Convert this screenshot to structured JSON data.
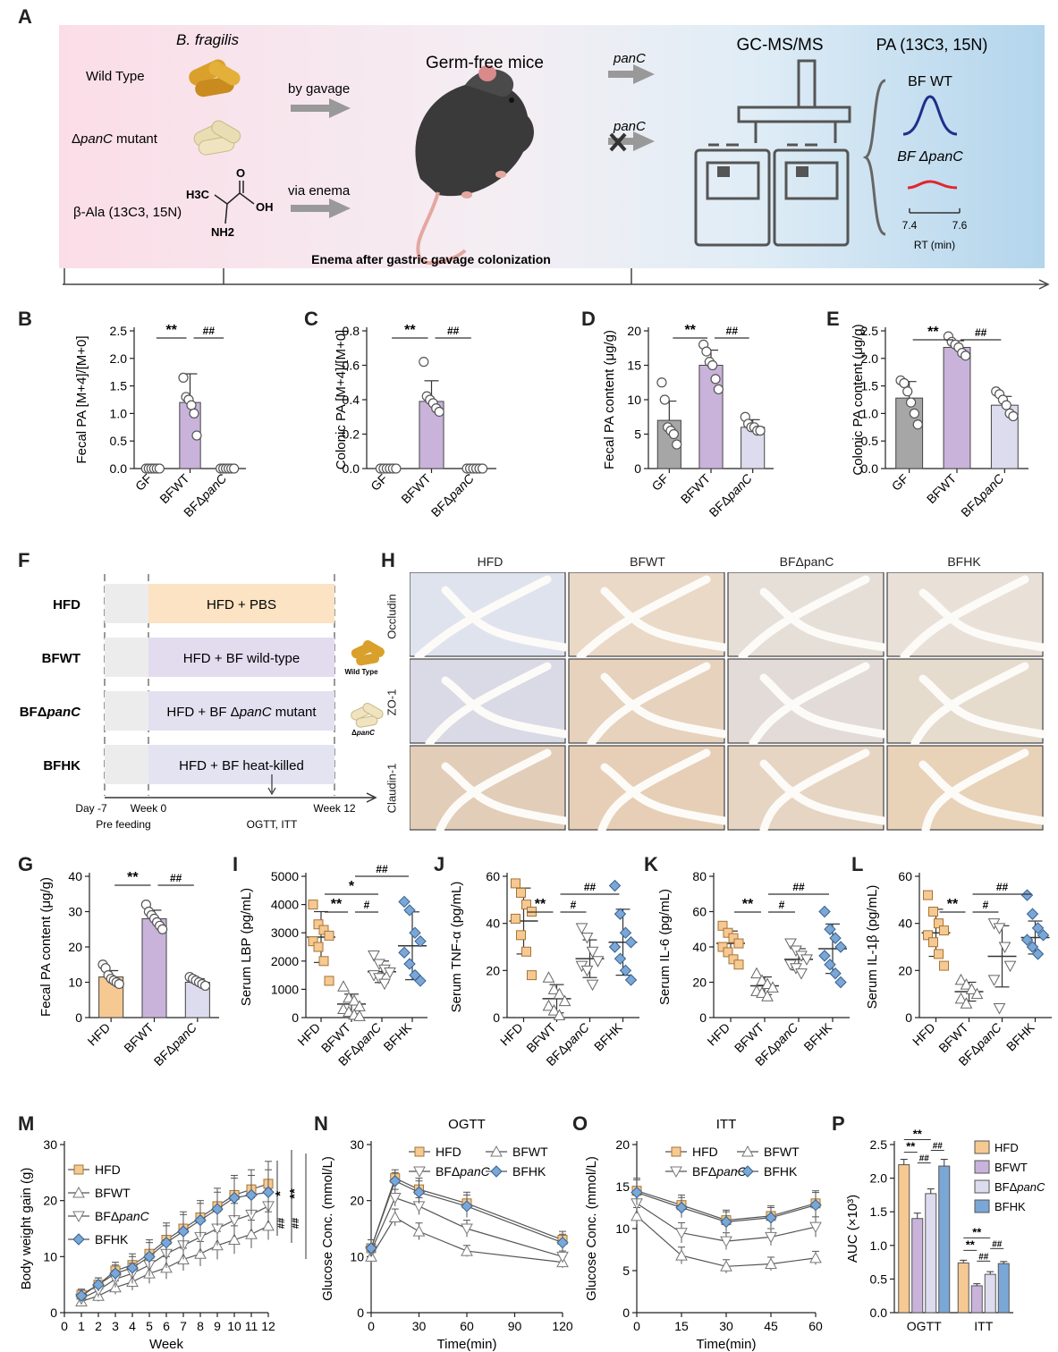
{
  "panel_labels": {
    "A": "A",
    "B": "B",
    "C": "C",
    "D": "D",
    "E": "E",
    "F": "F",
    "G": "G",
    "H": "H",
    "I": "I",
    "J": "J",
    "K": "K",
    "L": "L",
    "M": "M",
    "N": "N",
    "O": "O",
    "P": "P"
  },
  "schematic": {
    "species": "B. fragilis",
    "wild_type": "Wild Type",
    "mutant_prefix": "Δ",
    "mutant_gene": "panC",
    "mutant_suffix": " mutant",
    "bala": "β-Ala (13C3, 15N)",
    "formula_h3c": "H3C",
    "formula_oh": "OH",
    "formula_nh2": "NH2",
    "formula_o": "O",
    "by_gavage": "by gavage",
    "via_enema": "via enema",
    "germ_free": "Germ-free mice",
    "panc_top": "panC",
    "panc_bottom": "panC",
    "gcms": "GC-MS/MS",
    "pa_label": "PA (13C3, 15N)",
    "bf_wt": "BF WT",
    "bf_dpanc": "BF ΔpanC",
    "rt_left": "7.4",
    "rt_right": "7.6",
    "rt_label": "RT (min)",
    "timeline_text": "Enema after gastric gavage colonization",
    "colors": {
      "pink": "#f9dbe6",
      "blue": "#b8d7ee",
      "wt_peak": "#1f2f8a",
      "mut_peak": "#e0262e"
    }
  },
  "groups_BE": [
    "GF",
    "BFWT",
    "BFΔpanC"
  ],
  "groups_G": [
    "HFD",
    "BFWT",
    "BFΔpanC"
  ],
  "groups_4": [
    "HFD",
    "BFWT",
    "BFΔpanC",
    "BFHK"
  ],
  "colors": {
    "gf": "#a6a6a6",
    "hfd": "#f6c993",
    "bfwt": "#c9b3da",
    "bfdpanc": "#dcdcee",
    "bfhk": "#7aa7d6",
    "hfd_line": "#e5a75a",
    "bfwt_line": "#9a9a9a",
    "bfdpanc_line": "#8a8a8a",
    "bfhk_line": "#5b8ec9"
  },
  "panel_F": {
    "rows": [
      {
        "label": "HFD",
        "text": "HFD + PBS",
        "color": "#fbe3c4"
      },
      {
        "label": "BFWT",
        "text": "HFD + BF wild-type",
        "color": "#e3dcef"
      },
      {
        "label": "BFΔpanC",
        "text": "HFD + BF ΔpanC mutant",
        "color": "#e3e1f0"
      },
      {
        "label": "BFHK",
        "text": "HFD + BF heat-killed",
        "color": "#e3e3f2"
      }
    ],
    "wild_type_tag": "Wild Type",
    "dpanc_tag": "ΔpanC",
    "day": "Day -7",
    "week0": "Week 0",
    "week12": "Week 12",
    "pre": "Pre feeding",
    "ogtt_itt": "OGTT, ITT"
  },
  "panel_H": {
    "columns": [
      "HFD",
      "BFWT",
      "BFΔpanC",
      "BFHK"
    ],
    "rows": [
      "Occludin",
      "ZO-1",
      "Claudin-1"
    ]
  },
  "chart_data": [
    {
      "panel": "B",
      "type": "bar",
      "categories": [
        "GF",
        "BFWT",
        "BFΔpanC"
      ],
      "values": [
        0,
        1.2,
        0
      ],
      "error": [
        0,
        0.52,
        0
      ],
      "points": [
        [
          0,
          0,
          0,
          0,
          0,
          0
        ],
        [
          1.65,
          1.3,
          1.25,
          1.15,
          1.0,
          0.6
        ],
        [
          0,
          0,
          0,
          0,
          0,
          0
        ]
      ],
      "ylabel": "Fecal PA [M+4]/[M+0]",
      "ylim": [
        0,
        2.5
      ],
      "yticks": [
        0,
        0.5,
        1.0,
        1.5,
        2.0,
        2.5
      ],
      "sig": [
        {
          "text": "**",
          "from": 0,
          "to": 1
        },
        {
          "text": "##",
          "from": 1,
          "to": 2
        }
      ]
    },
    {
      "panel": "C",
      "type": "bar",
      "categories": [
        "GF",
        "BFWT",
        "BFΔpanC"
      ],
      "values": [
        0,
        0.39,
        0
      ],
      "error": [
        0,
        0.12,
        0
      ],
      "points": [
        [
          0,
          0,
          0,
          0,
          0,
          0
        ],
        [
          0.62,
          0.42,
          0.4,
          0.38,
          0.35,
          0.33
        ],
        [
          0,
          0,
          0,
          0,
          0,
          0
        ]
      ],
      "ylabel": "Colonic PA [M+4]/[M+0]",
      "ylim": [
        0,
        0.8
      ],
      "yticks": [
        0,
        0.2,
        0.4,
        0.6,
        0.8
      ],
      "sig": [
        {
          "text": "**",
          "from": 0,
          "to": 1
        },
        {
          "text": "##",
          "from": 1,
          "to": 2
        }
      ]
    },
    {
      "panel": "D",
      "type": "bar",
      "categories": [
        "GF",
        "BFWT",
        "BFΔpanC"
      ],
      "values": [
        7,
        15,
        6
      ],
      "error": [
        2.8,
        2.2,
        1.1
      ],
      "points": [
        [
          12.5,
          10,
          6,
          5.5,
          5,
          3.5
        ],
        [
          18,
          17,
          15.5,
          15,
          13,
          11.5
        ],
        [
          7.5,
          6.5,
          6,
          6,
          5.5,
          5.5
        ]
      ],
      "ylabel": "Fecal PA content (μg/g)",
      "ylim": [
        0,
        20
      ],
      "yticks": [
        0,
        5,
        10,
        15,
        20
      ],
      "sig": [
        {
          "text": "**",
          "from": 0,
          "to": 1
        },
        {
          "text": "##",
          "from": 1,
          "to": 2
        }
      ]
    },
    {
      "panel": "E",
      "type": "bar",
      "categories": [
        "GF",
        "BFWT",
        "BFΔpanC"
      ],
      "values": [
        1.28,
        2.2,
        1.15
      ],
      "error": [
        0.3,
        0.12,
        0.16
      ],
      "points": [
        [
          1.6,
          1.55,
          1.4,
          1.2,
          1.0,
          0.8
        ],
        [
          2.4,
          2.3,
          2.25,
          2.2,
          2.1,
          2.05
        ],
        [
          1.4,
          1.35,
          1.25,
          1.15,
          1.0,
          0.95
        ]
      ],
      "ylabel": "Colonic PA content (μg/g)",
      "ylim": [
        0,
        2.5
      ],
      "yticks": [
        0,
        0.5,
        1.0,
        1.5,
        2.0,
        2.5
      ],
      "sig": [
        {
          "text": "**",
          "from": 0,
          "to": 1
        },
        {
          "text": "##",
          "from": 1,
          "to": 2
        }
      ]
    },
    {
      "panel": "G",
      "type": "bar",
      "categories": [
        "HFD",
        "BFWT",
        "BFΔpanC"
      ],
      "values": [
        11.5,
        28,
        10
      ],
      "error": [
        1.8,
        2.4,
        1.0
      ],
      "points": [
        [
          15,
          14,
          12,
          11,
          10.5,
          10,
          9.5
        ],
        [
          32,
          30,
          29,
          28,
          27,
          26,
          25
        ],
        [
          11.5,
          11,
          10.5,
          10,
          9.5,
          9
        ]
      ],
      "ylabel": "Fecal PA content (μg/g)",
      "ylim": [
        0,
        40
      ],
      "yticks": [
        0,
        10,
        20,
        30,
        40
      ],
      "sig": [
        {
          "text": "**",
          "from": 0,
          "to": 1
        },
        {
          "text": "##",
          "from": 1,
          "to": 2
        }
      ]
    },
    {
      "panel": "I",
      "type": "scatter",
      "categories": [
        "HFD",
        "BFWT",
        "BFΔpanC",
        "BFHK"
      ],
      "mean": [
        2850,
        480,
        1620,
        2540
      ],
      "sd": [
        900,
        350,
        380,
        1200
      ],
      "points": [
        [
          4000,
          3300,
          3100,
          2900,
          2700,
          2500,
          2000,
          1300
        ],
        [
          1100,
          700,
          600,
          400,
          300,
          200,
          100,
          50
        ],
        [
          2200,
          1900,
          1700,
          1600,
          1500,
          1400,
          1200
        ],
        [
          4100,
          3800,
          3000,
          2700,
          2300,
          1900,
          1500,
          1300
        ]
      ],
      "ylabel": "Serum LBP (pg/mL)",
      "ylim": [
        0,
        5000
      ],
      "yticks": [
        0,
        1000,
        2000,
        3000,
        4000,
        5000
      ],
      "sig": [
        {
          "text": "**",
          "from": 0,
          "to": 1,
          "lvl": 0
        },
        {
          "text": "#",
          "from": 1,
          "to": 2,
          "lvl": 0
        },
        {
          "text": "*",
          "from": 0,
          "to": 2,
          "lvl": 1
        },
        {
          "text": "##",
          "from": 1,
          "to": 3,
          "lvl": 2
        }
      ]
    },
    {
      "panel": "J",
      "type": "scatter",
      "categories": [
        "HFD",
        "BFWT",
        "BFΔpanC",
        "BFHK"
      ],
      "mean": [
        41,
        8,
        25,
        32
      ],
      "sd": [
        14,
        6,
        8,
        14
      ],
      "points": [
        [
          57,
          53,
          48,
          45,
          42,
          35,
          28,
          18
        ],
        [
          17,
          12,
          10,
          7,
          5,
          3,
          1
        ],
        [
          38,
          34,
          28,
          24,
          22,
          20,
          14
        ],
        [
          56,
          44,
          36,
          32,
          30,
          25,
          20,
          16
        ]
      ],
      "ylabel": "Serum TNF-α (pg/mL)",
      "ylim": [
        0,
        60
      ],
      "yticks": [
        0,
        20,
        40,
        60
      ],
      "sig": [
        {
          "text": "**",
          "from": 0,
          "to": 1,
          "lvl": 0
        },
        {
          "text": "#",
          "from": 1,
          "to": 2,
          "lvl": 0
        },
        {
          "text": "##",
          "from": 1,
          "to": 3,
          "lvl": 1
        }
      ]
    },
    {
      "panel": "K",
      "type": "scatter",
      "categories": [
        "HFD",
        "BFWT",
        "BFΔpanC",
        "BFHK"
      ],
      "mean": [
        42,
        18,
        33,
        39
      ],
      "sd": [
        7,
        5,
        6,
        14
      ],
      "points": [
        [
          52,
          48,
          45,
          42,
          40,
          37,
          33,
          30
        ],
        [
          25,
          21,
          19,
          17,
          15,
          14,
          12
        ],
        [
          42,
          38,
          35,
          33,
          30,
          28,
          25
        ],
        [
          60,
          50,
          45,
          40,
          35,
          30,
          25,
          20
        ]
      ],
      "ylabel": "Serum IL-6 (pg/mL)",
      "ylim": [
        0,
        80
      ],
      "yticks": [
        0,
        20,
        40,
        60,
        80
      ],
      "sig": [
        {
          "text": "**",
          "from": 0,
          "to": 1,
          "lvl": 0
        },
        {
          "text": "#",
          "from": 1,
          "to": 2,
          "lvl": 0
        },
        {
          "text": "##",
          "from": 1,
          "to": 3,
          "lvl": 1
        }
      ]
    },
    {
      "panel": "L",
      "type": "scatter",
      "categories": [
        "HFD",
        "BFWT",
        "BFΔpanC",
        "BFHK"
      ],
      "mean": [
        36,
        11,
        26,
        34
      ],
      "sd": [
        10,
        4,
        13,
        7
      ],
      "points": [
        [
          52,
          45,
          40,
          37,
          35,
          32,
          27,
          22
        ],
        [
          16,
          14,
          12,
          10,
          8,
          6
        ],
        [
          40,
          38,
          30,
          22,
          16,
          4
        ],
        [
          52,
          44,
          38,
          35,
          33,
          30,
          27
        ]
      ],
      "ylabel": "Serum IL-1β (pg/mL)",
      "ylim": [
        0,
        60
      ],
      "yticks": [
        0,
        20,
        40,
        60
      ],
      "sig": [
        {
          "text": "**",
          "from": 0,
          "to": 1,
          "lvl": 0
        },
        {
          "text": "#",
          "from": 1,
          "to": 2,
          "lvl": 0
        },
        {
          "text": "##",
          "from": 1,
          "to": 3,
          "lvl": 1
        }
      ]
    },
    {
      "panel": "M",
      "type": "line",
      "x": [
        1,
        2,
        3,
        4,
        5,
        6,
        7,
        8,
        9,
        10,
        11,
        12
      ],
      "series": [
        {
          "name": "HFD",
          "values": [
            3.2,
            5,
            7.5,
            8.5,
            10.5,
            13,
            15,
            17,
            19,
            21,
            22,
            23
          ],
          "err": [
            1,
            1.2,
            1.5,
            2,
            2.5,
            3,
            3,
            3,
            3.2,
            3.5,
            3.5,
            4
          ]
        },
        {
          "name": "BFWT",
          "values": [
            2,
            3,
            4.5,
            5.5,
            7,
            8,
            9.5,
            10.5,
            12,
            13,
            14,
            15.5
          ],
          "err": [
            0.8,
            1,
            1.2,
            1.5,
            1.8,
            2,
            2,
            2.2,
            2.5,
            2.5,
            2.5,
            2.5
          ]
        },
        {
          "name": "BFΔpanC",
          "values": [
            2.5,
            4,
            6,
            7,
            8.5,
            10.5,
            12,
            13.5,
            15,
            16.5,
            17.5,
            19
          ],
          "err": [
            1,
            1.2,
            1.5,
            1.8,
            2,
            2.5,
            2.5,
            2.8,
            3,
            3,
            3,
            3
          ]
        },
        {
          "name": "BFHK",
          "values": [
            3,
            5,
            7,
            8,
            10,
            12.5,
            14.5,
            16.5,
            18.5,
            20.5,
            21,
            21.5
          ],
          "err": [
            1,
            1.2,
            1.5,
            2,
            2.5,
            3,
            3,
            3,
            3,
            3.5,
            3.5,
            4
          ]
        }
      ],
      "xlabel": "Week",
      "ylabel": "Body weight gain (g)",
      "xlim": [
        0,
        12
      ],
      "ylim": [
        0,
        30
      ],
      "xticks": [
        0,
        1,
        2,
        3,
        4,
        5,
        6,
        7,
        8,
        9,
        10,
        11,
        12
      ],
      "yticks": [
        0,
        10,
        20,
        30
      ],
      "sig_labels": [
        "*",
        "**",
        "##",
        "##"
      ]
    },
    {
      "panel": "N",
      "type": "line",
      "title": "OGTT",
      "x": [
        0,
        15,
        30,
        60,
        120
      ],
      "series": [
        {
          "name": "HFD",
          "values": [
            11.5,
            24,
            22,
            19.5,
            13
          ],
          "err": [
            1.5,
            1.5,
            2,
            2,
            1.5
          ]
        },
        {
          "name": "BFWT",
          "values": [
            10,
            17,
            14.5,
            11,
            9
          ],
          "err": [
            1,
            1.5,
            1.5,
            1,
            1
          ]
        },
        {
          "name": "BFΔpanC",
          "values": [
            11,
            20.5,
            19,
            15,
            10
          ],
          "err": [
            1,
            1.5,
            1.5,
            1.5,
            1
          ]
        },
        {
          "name": "BFHK",
          "values": [
            11.5,
            23.5,
            21.5,
            19,
            12.5
          ],
          "err": [
            1.5,
            1.5,
            2,
            2,
            1.5
          ]
        }
      ],
      "xlabel": "Time(min)",
      "ylabel": "Glucose Conc. (mmol/L)",
      "xlim": [
        0,
        120
      ],
      "ylim": [
        0,
        30
      ],
      "xticks": [
        0,
        30,
        60,
        90,
        120
      ],
      "yticks": [
        0,
        10,
        20,
        30
      ]
    },
    {
      "panel": "O",
      "type": "line",
      "title": "ITT",
      "x": [
        0,
        15,
        30,
        45,
        60
      ],
      "series": [
        {
          "name": "HFD",
          "values": [
            14.5,
            12.8,
            11,
            11.5,
            13
          ],
          "err": [
            1.5,
            1.2,
            1.2,
            1.2,
            1.5
          ]
        },
        {
          "name": "BFWT",
          "values": [
            11.5,
            6.8,
            5.5,
            5.8,
            6.5
          ],
          "err": [
            1,
            1,
            0.8,
            0.8,
            0.8
          ]
        },
        {
          "name": "BFΔpanC",
          "values": [
            13,
            9.5,
            8.5,
            9,
            10.2
          ],
          "err": [
            1.2,
            1.2,
            1,
            1,
            1.2
          ]
        },
        {
          "name": "BFHK",
          "values": [
            14.3,
            12.5,
            10.8,
            11.3,
            12.8
          ],
          "err": [
            1.5,
            1.2,
            1.2,
            1.2,
            1.5
          ]
        }
      ],
      "xlabel": "Time(min)",
      "ylabel": "Glucose Conc. (mmol/L)",
      "xlim": [
        0,
        60
      ],
      "ylim": [
        0,
        20
      ],
      "xticks": [
        0,
        15,
        30,
        45,
        60
      ],
      "yticks": [
        0,
        5,
        10,
        15,
        20
      ]
    },
    {
      "panel": "P",
      "type": "bar",
      "categories": [
        "OGTT",
        "ITT"
      ],
      "series": [
        {
          "name": "HFD",
          "values": [
            2.2,
            0.74
          ],
          "err": [
            0.08,
            0.04
          ]
        },
        {
          "name": "BFWT",
          "values": [
            1.4,
            0.4
          ],
          "err": [
            0.08,
            0.03
          ]
        },
        {
          "name": "BFΔpanC",
          "values": [
            1.77,
            0.57
          ],
          "err": [
            0.07,
            0.04
          ]
        },
        {
          "name": "BFHK",
          "values": [
            2.18,
            0.73
          ],
          "err": [
            0.1,
            0.03
          ]
        }
      ],
      "ylabel": "AUC (×10³)",
      "ylim": [
        0,
        2.5
      ],
      "yticks": [
        0,
        0.5,
        1.0,
        1.5,
        2.0,
        2.5
      ]
    }
  ]
}
